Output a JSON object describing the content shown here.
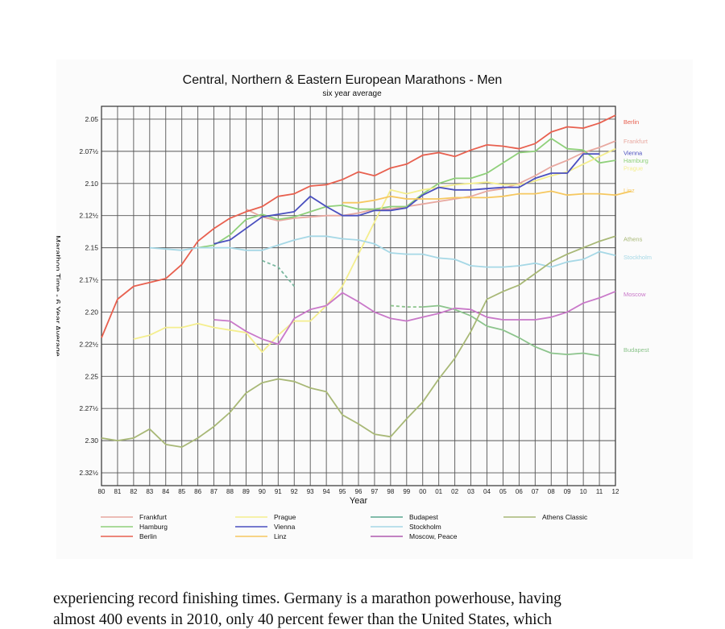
{
  "chart_data": {
    "type": "line",
    "title": "Central, Northern & Eastern European Marathons - Men",
    "subtitle": "six year average",
    "xlabel": "Year",
    "ylabel": "Marathon Time - 6 Year Average",
    "x_ticks": [
      "80",
      "81",
      "82",
      "83",
      "84",
      "85",
      "86",
      "87",
      "88",
      "89",
      "90",
      "91",
      "92",
      "93",
      "94",
      "95",
      "96",
      "97",
      "98",
      "99",
      "00",
      "01",
      "02",
      "03",
      "04",
      "05",
      "06",
      "07",
      "08",
      "09",
      "10",
      "11",
      "12"
    ],
    "y_ticks": [
      "2.05",
      "2.07½",
      "2.10",
      "2.12½",
      "2.15",
      "2.17½",
      "2.20",
      "2.22½",
      "2.25",
      "2.27½",
      "2.30",
      "2.32½"
    ],
    "y_axis_reversed": true,
    "grid": true,
    "legend_position": "bottom",
    "series": [
      {
        "name": "Frankfurt",
        "label": "Frankfurt",
        "color": "#e8a8a0",
        "dash": false,
        "start": 9,
        "values": [
          2.12,
          2.126,
          2.129,
          2.127,
          2.126,
          2.125,
          2.125,
          2.123,
          2.12,
          2.12,
          2.118,
          2.116,
          2.114,
          2.112,
          2.11,
          2.106,
          2.104,
          2.1,
          2.094,
          2.087,
          2.082,
          2.076,
          2.072,
          2.067
        ]
      },
      {
        "name": "Hamburg",
        "label": "Hamburg",
        "color": "#8fd07a",
        "dash": false,
        "start": 6,
        "values": [
          2.15,
          2.148,
          2.14,
          2.128,
          2.124,
          2.128,
          2.126,
          2.122,
          2.118,
          2.117,
          2.12,
          2.12,
          2.118,
          2.118,
          2.108,
          2.1,
          2.096,
          2.096,
          2.092,
          2.084,
          2.076,
          2.075,
          2.065,
          2.073,
          2.074,
          2.084,
          2.082
        ]
      },
      {
        "name": "Berlin",
        "label": "Berlin",
        "color": "#e8604f",
        "dash": false,
        "start": 0,
        "values": [
          2.22,
          2.19,
          2.18,
          2.177,
          2.174,
          2.163,
          2.145,
          2.135,
          2.127,
          2.122,
          2.118,
          2.11,
          2.108,
          2.102,
          2.101,
          2.097,
          2.091,
          2.094,
          2.088,
          2.085,
          2.078,
          2.076,
          2.079,
          2.074,
          2.07,
          2.071,
          2.073,
          2.069,
          2.06,
          2.056,
          2.057,
          2.053,
          2.047
        ]
      },
      {
        "name": "Prague",
        "label": "Prague",
        "color": "#f4ee8e",
        "dash": false,
        "start": 2,
        "values": [
          2.221,
          2.218,
          2.212,
          2.212,
          2.209,
          2.212,
          2.214,
          2.216,
          2.231,
          2.218,
          2.207,
          2.207,
          2.195,
          2.18,
          2.155,
          2.13,
          2.105,
          2.108,
          2.105,
          2.103,
          2.101,
          2.1,
          2.099,
          2.101,
          2.101,
          2.098,
          2.094,
          2.091,
          2.085,
          2.079,
          2.073
        ]
      },
      {
        "name": "Vienna",
        "label": "Vienna",
        "color": "#4a4fbf",
        "dash": false,
        "start": 7,
        "values": [
          2.147,
          2.144,
          2.135,
          2.126,
          2.124,
          2.122,
          2.11,
          2.118,
          2.125,
          2.125,
          2.121,
          2.121,
          2.119,
          2.109,
          2.103,
          2.105,
          2.105,
          2.104,
          2.103,
          2.103,
          2.096,
          2.092,
          2.092,
          2.077,
          2.077
        ]
      },
      {
        "name": "Linz",
        "label": "Linz",
        "color": "#f6c860",
        "dash": false,
        "start": 15,
        "values": [
          2.115,
          2.115,
          2.113,
          2.11,
          2.112,
          2.112,
          2.112,
          2.111,
          2.111,
          2.111,
          2.11,
          2.108,
          2.108,
          2.106,
          2.109,
          2.108,
          2.108,
          2.109,
          2.106
        ]
      },
      {
        "name": "Budapest",
        "label": "Budapest",
        "color": "#8cc48c",
        "dash": false,
        "start": 20,
        "values": [
          2.196,
          2.195,
          2.198,
          2.203,
          2.211,
          2.214,
          2.22,
          2.227,
          2.232,
          2.233,
          2.232,
          2.234
        ]
      },
      {
        "name": "Budapest-dashed",
        "label": "Budapest",
        "color": "#8cc48c",
        "dash": true,
        "start": 18,
        "values": [
          2.195,
          2.196,
          2.196
        ]
      },
      {
        "name": "Stockholm",
        "label": "Stockholm",
        "color": "#a6d8e6",
        "dash": false,
        "start": 3,
        "values": [
          2.15,
          2.151,
          2.152,
          2.15,
          2.15,
          2.15,
          2.152,
          2.152,
          2.148,
          2.144,
          2.141,
          2.141,
          2.143,
          2.144,
          2.147,
          2.154,
          2.155,
          2.155,
          2.158,
          2.159,
          2.164,
          2.165,
          2.165,
          2.164,
          2.162,
          2.165,
          2.161,
          2.159,
          2.153,
          2.156
        ]
      },
      {
        "name": "Moscow",
        "label": "Moscow, Peace",
        "color": "#c978c9",
        "dash": false,
        "start": 7,
        "values": [
          2.206,
          2.207,
          2.215,
          2.221,
          2.225,
          2.205,
          2.198,
          2.195,
          2.185,
          2.192,
          2.2,
          2.205,
          2.207,
          2.204,
          2.201,
          2.197,
          2.198,
          2.204,
          2.206,
          2.206,
          2.206,
          2.204,
          2.2,
          2.193,
          2.189,
          2.184
        ]
      },
      {
        "name": "Moscow-dashed",
        "label": "Moscow, Peace",
        "color": "#7ab8a0",
        "dash": true,
        "start": 10,
        "values": [
          2.16,
          2.165,
          2.18
        ]
      },
      {
        "name": "Athens",
        "label": "Athens Classic",
        "color": "#a8b876",
        "dash": false,
        "start": 0,
        "values": [
          2.298,
          2.3,
          2.298,
          2.291,
          2.303,
          2.305,
          2.298,
          2.289,
          2.278,
          2.263,
          2.255,
          2.252,
          2.254,
          2.259,
          2.262,
          2.28,
          2.287,
          2.295,
          2.297,
          2.283,
          2.27,
          2.252,
          2.236,
          2.215,
          2.19,
          2.184,
          2.179,
          2.17,
          2.161,
          2.155,
          2.15,
          2.145,
          2.141
        ]
      }
    ],
    "end_labels": [
      {
        "text": "Berlin",
        "color": "#e8604f",
        "value": 2.052
      },
      {
        "text": "Frankfurt",
        "color": "#e8a8a0",
        "value": 2.067
      },
      {
        "text": "Vienna",
        "color": "#4a4fbf",
        "value": 2.076
      },
      {
        "text": "Hamburg",
        "color": "#8fd07a",
        "value": 2.082
      },
      {
        "text": "Prague",
        "color": "#f4ee8e",
        "value": 2.088
      },
      {
        "text": "Linz",
        "color": "#f6c860",
        "value": 2.105
      },
      {
        "text": "Athens",
        "color": "#a8b876",
        "value": 2.143
      },
      {
        "text": "Stockholm",
        "color": "#a6d8e6",
        "value": 2.157
      },
      {
        "text": "Moscow",
        "color": "#c978c9",
        "value": 2.186
      },
      {
        "text": "Budapest",
        "color": "#8cc48c",
        "value": 2.229
      }
    ],
    "legend": [
      {
        "label": "Frankfurt",
        "color": "#e8a8a0"
      },
      {
        "label": "Hamburg",
        "color": "#8fd07a"
      },
      {
        "label": "Berlin",
        "color": "#e8604f"
      },
      {
        "label": "Prague",
        "color": "#f4ee8e"
      },
      {
        "label": "Vienna",
        "color": "#4a4fbf"
      },
      {
        "label": "Linz",
        "color": "#f6c860"
      },
      {
        "label": "Budapest",
        "color": "#5aa890"
      },
      {
        "label": "Stockholm",
        "color": "#a6d8e6"
      },
      {
        "label": "Moscow, Peace",
        "color": "#b05ab0"
      },
      {
        "label": "Athens Classic",
        "color": "#a8b876"
      }
    ]
  },
  "body_text": {
    "line1": "experiencing record finishing times. Germany is a marathon powerhouse, having",
    "line2": "almost 400 events in 2010, only 40 percent fewer than the United States, which"
  }
}
